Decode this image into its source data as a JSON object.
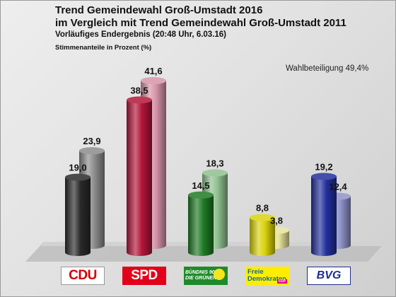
{
  "chart_data": {
    "type": "bar",
    "title": "Trend Gemeindewahl Groß-Umstadt 2016",
    "subtitle_line": "im Vergleich mit Trend Gemeindewahl Groß-Umstadt 2011",
    "status": "Vorläufiges Endergebnis (20:48 Uhr, 6.03.16)",
    "ylabel": "Stimmenanteile in Prozent (%)",
    "annotation": "Wahlbeteiligung 49,4%",
    "categories": [
      "CDU",
      "SPD",
      "GRÜNE",
      "FDP",
      "BVG"
    ],
    "series": [
      {
        "values": [
          19.0,
          38.5,
          14.5,
          8.8,
          19.2
        ],
        "labels": [
          "19,0",
          "38,5",
          "14,5",
          "8,8",
          "19,2"
        ],
        "colors": [
          "#2a2a2a",
          "#b3153a",
          "#1f7a25",
          "#d9d20c",
          "#232f9c"
        ]
      },
      {
        "values": [
          23.9,
          41.6,
          18.3,
          3.8,
          12.4
        ],
        "labels": [
          "23,9",
          "41,6",
          "18,3",
          "3,8",
          "12,4"
        ],
        "colors": [
          "#8c8c8c",
          "#d694a8",
          "#8fc08f",
          "#e6e49a",
          "#8f93c8"
        ]
      }
    ],
    "ylim": [
      0,
      45
    ],
    "grid": false,
    "legend": "none"
  },
  "logos": {
    "cdu": "CDU",
    "spd": "SPD",
    "gruene_line1": "BÜNDNIS 90",
    "gruene_line2": "DIE GRÜNEN",
    "fdp_line1": "Freie",
    "fdp_line2": "Demokraten",
    "fdp_tag": "FDP",
    "bvg": "BVG"
  }
}
